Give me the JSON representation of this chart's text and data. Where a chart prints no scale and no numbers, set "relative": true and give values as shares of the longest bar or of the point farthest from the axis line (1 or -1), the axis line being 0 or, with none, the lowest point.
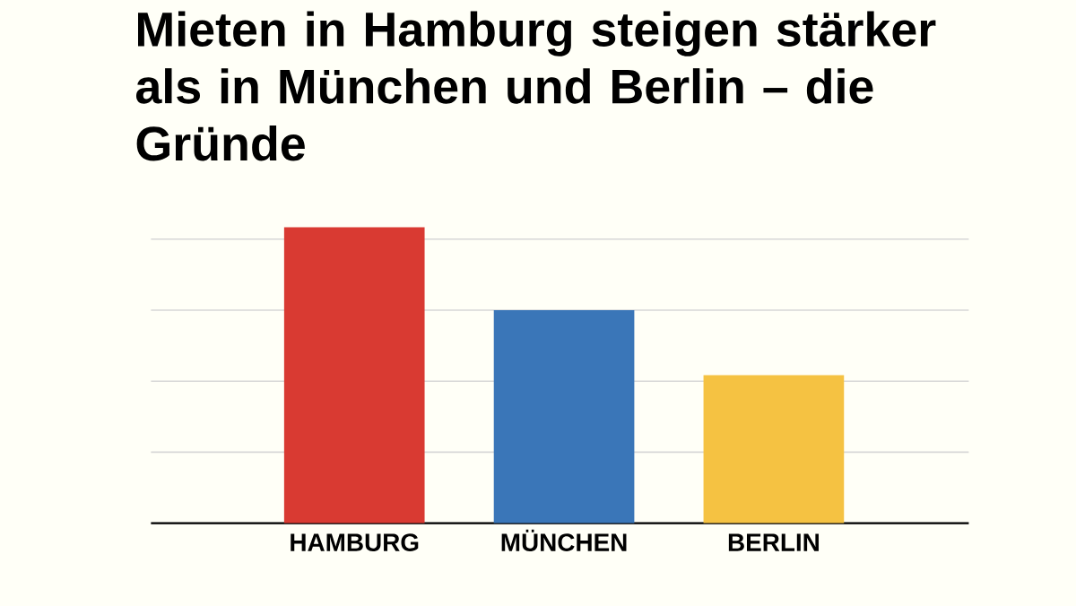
{
  "chart_data": {
    "type": "bar",
    "title": "Mieten in Hamburg steigen stärker als in München und Berlin – die Gründe",
    "categories": [
      "HAMBURG",
      "MÜNCHEN",
      "BERLIN"
    ],
    "values": [
      1,
      0.72,
      0.5
    ],
    "colors": [
      "#d93a32",
      "#3a76b8",
      "#f5c242"
    ],
    "relative": true,
    "grid": "y"
  }
}
